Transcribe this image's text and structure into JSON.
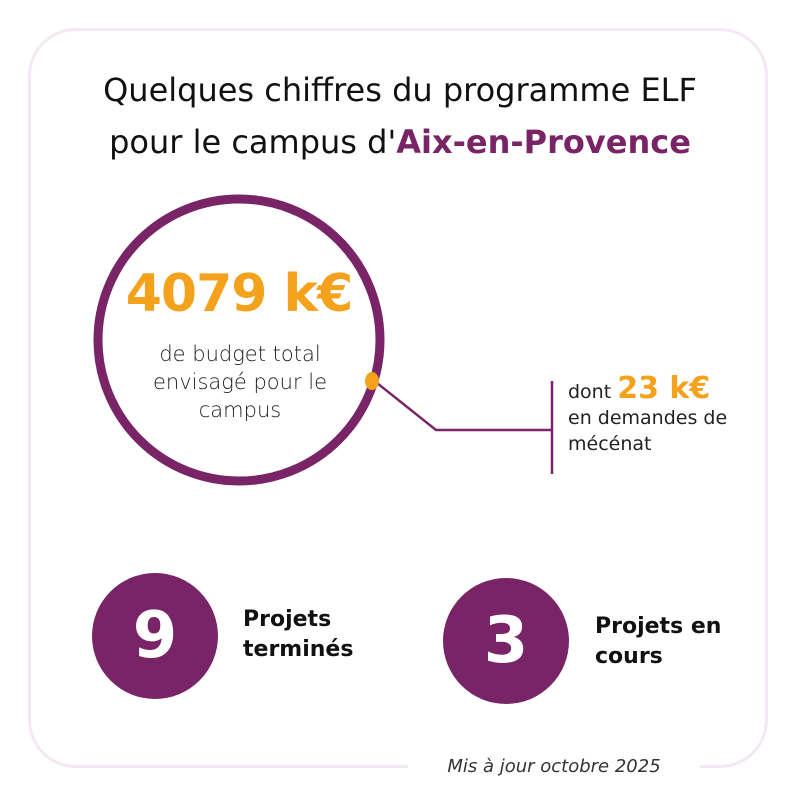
{
  "title": {
    "line1": "Quelques chiffres du programme ELF",
    "line2_prefix": "pour le campus d'",
    "line2_accent": "Aix-en-Provence"
  },
  "budget": {
    "amount": "4079 k€",
    "description": "de budget total envisagé pour le campus"
  },
  "patronage": {
    "prefix": "dont ",
    "amount": "23 k€",
    "suffix": "en demandes de mécénat"
  },
  "stats": [
    {
      "value": "9",
      "label": "Projets terminés"
    },
    {
      "value": "3",
      "label": "Projets en cours"
    }
  ],
  "footer": {
    "updated": "Mis à jour octobre 2025"
  },
  "colors": {
    "accent_purple": "#7a2468",
    "accent_orange": "#f4a21b",
    "card_border": "#f4e9f2"
  }
}
